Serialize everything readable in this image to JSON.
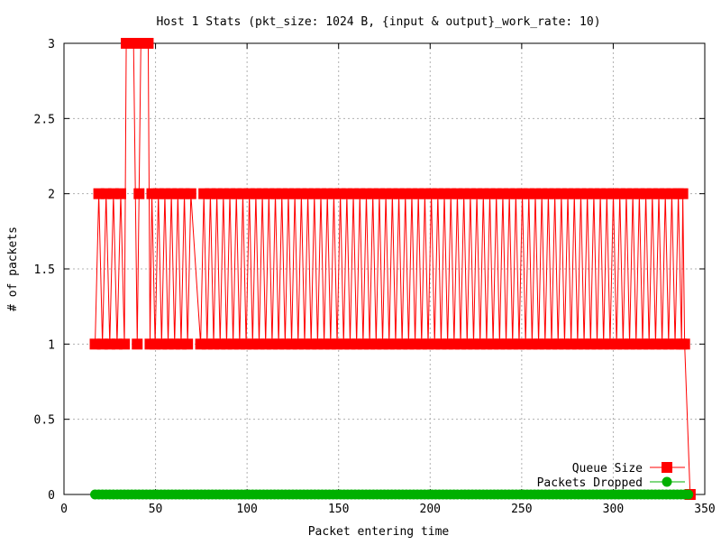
{
  "chart_data": {
    "type": "line",
    "title": "Host 1 Stats (pkt_size: 1024 B, {input & output}_work_rate: 10)",
    "xlabel": "Packet entering time",
    "ylabel": "# of packets",
    "xlim": [
      0,
      350
    ],
    "ylim": [
      0,
      3
    ],
    "xticks": [
      0,
      50,
      100,
      150,
      200,
      250,
      300,
      350
    ],
    "yticks": [
      0,
      0.5,
      1,
      1.5,
      2,
      2.5,
      3
    ],
    "xtick_labels": [
      "0",
      "50",
      "100",
      "150",
      "200",
      "250",
      "300",
      "350"
    ],
    "ytick_labels": [
      "0",
      "0.5",
      "1",
      "1.5",
      "2",
      "2.5",
      "3"
    ],
    "grid": true,
    "legend_position": "bottom-right",
    "colors": {
      "queue_size": "#ff0000",
      "packets_dropped": "#00b000"
    },
    "series": [
      {
        "name": "Queue Size",
        "marker": "square",
        "points": [
          [
            17,
            1
          ],
          [
            19,
            2
          ],
          [
            21,
            1
          ],
          [
            23,
            2
          ],
          [
            25,
            1
          ],
          [
            27,
            2
          ],
          [
            29,
            1
          ],
          [
            31,
            2
          ],
          [
            33,
            1
          ],
          [
            34,
            3
          ],
          [
            36,
            3
          ],
          [
            38,
            3
          ],
          [
            40,
            1
          ],
          [
            41,
            2
          ],
          [
            42,
            3
          ],
          [
            44,
            3
          ],
          [
            46,
            3
          ],
          [
            47,
            1
          ],
          [
            48,
            2
          ],
          [
            71,
            2
          ],
          [
            72,
            3
          ],
          [
            73,
            2
          ],
          [
            338,
            2
          ],
          [
            339,
            1
          ],
          [
            342,
            0
          ]
        ],
        "oscillation": {
          "x_range": [
            48,
            338
          ],
          "period": 3.55,
          "low": 1,
          "high": 2
        }
      },
      {
        "name": "Packets Dropped",
        "marker": "circle",
        "x_range": [
          17,
          342
        ],
        "step": 2,
        "constant_value": 0
      }
    ]
  }
}
